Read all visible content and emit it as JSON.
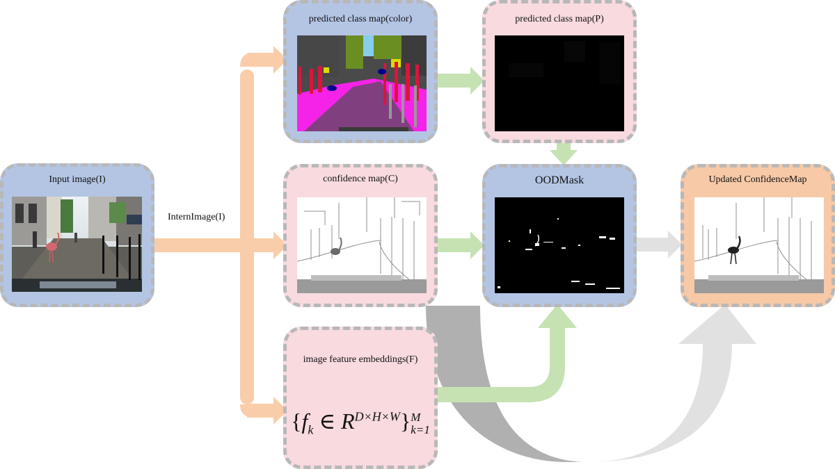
{
  "nodes": {
    "input": {
      "title": "Input image(I)"
    },
    "class_color": {
      "title": "predicted class map(color)"
    },
    "class_p": {
      "title": "predicted class map(P)"
    },
    "confidence": {
      "title": "confidence map(C)"
    },
    "ood": {
      "title": "OODMask"
    },
    "updated": {
      "title": "Updated ConfidenceMap"
    },
    "embeddings": {
      "title": "image feature embeddings(F)",
      "formula": {
        "f": "f",
        "sub_k": "k",
        "in": "∈",
        "R": "R",
        "sup": "D×H×W",
        "sub_range": "k=1",
        "M": "M",
        "open": "{",
        "close": "}"
      }
    }
  },
  "edges": {
    "backbone_label": "InternImage(I)"
  },
  "colors": {
    "blue_box": "#b4c5e4",
    "pink_box": "#f8dadf",
    "orange_box": "#f7c9a6",
    "orange_arrow": "#f9cda9",
    "green_arrow": "#c6e2b3",
    "gray_light": "#e1e1e1",
    "gray_dark": "#b0b0b0"
  }
}
